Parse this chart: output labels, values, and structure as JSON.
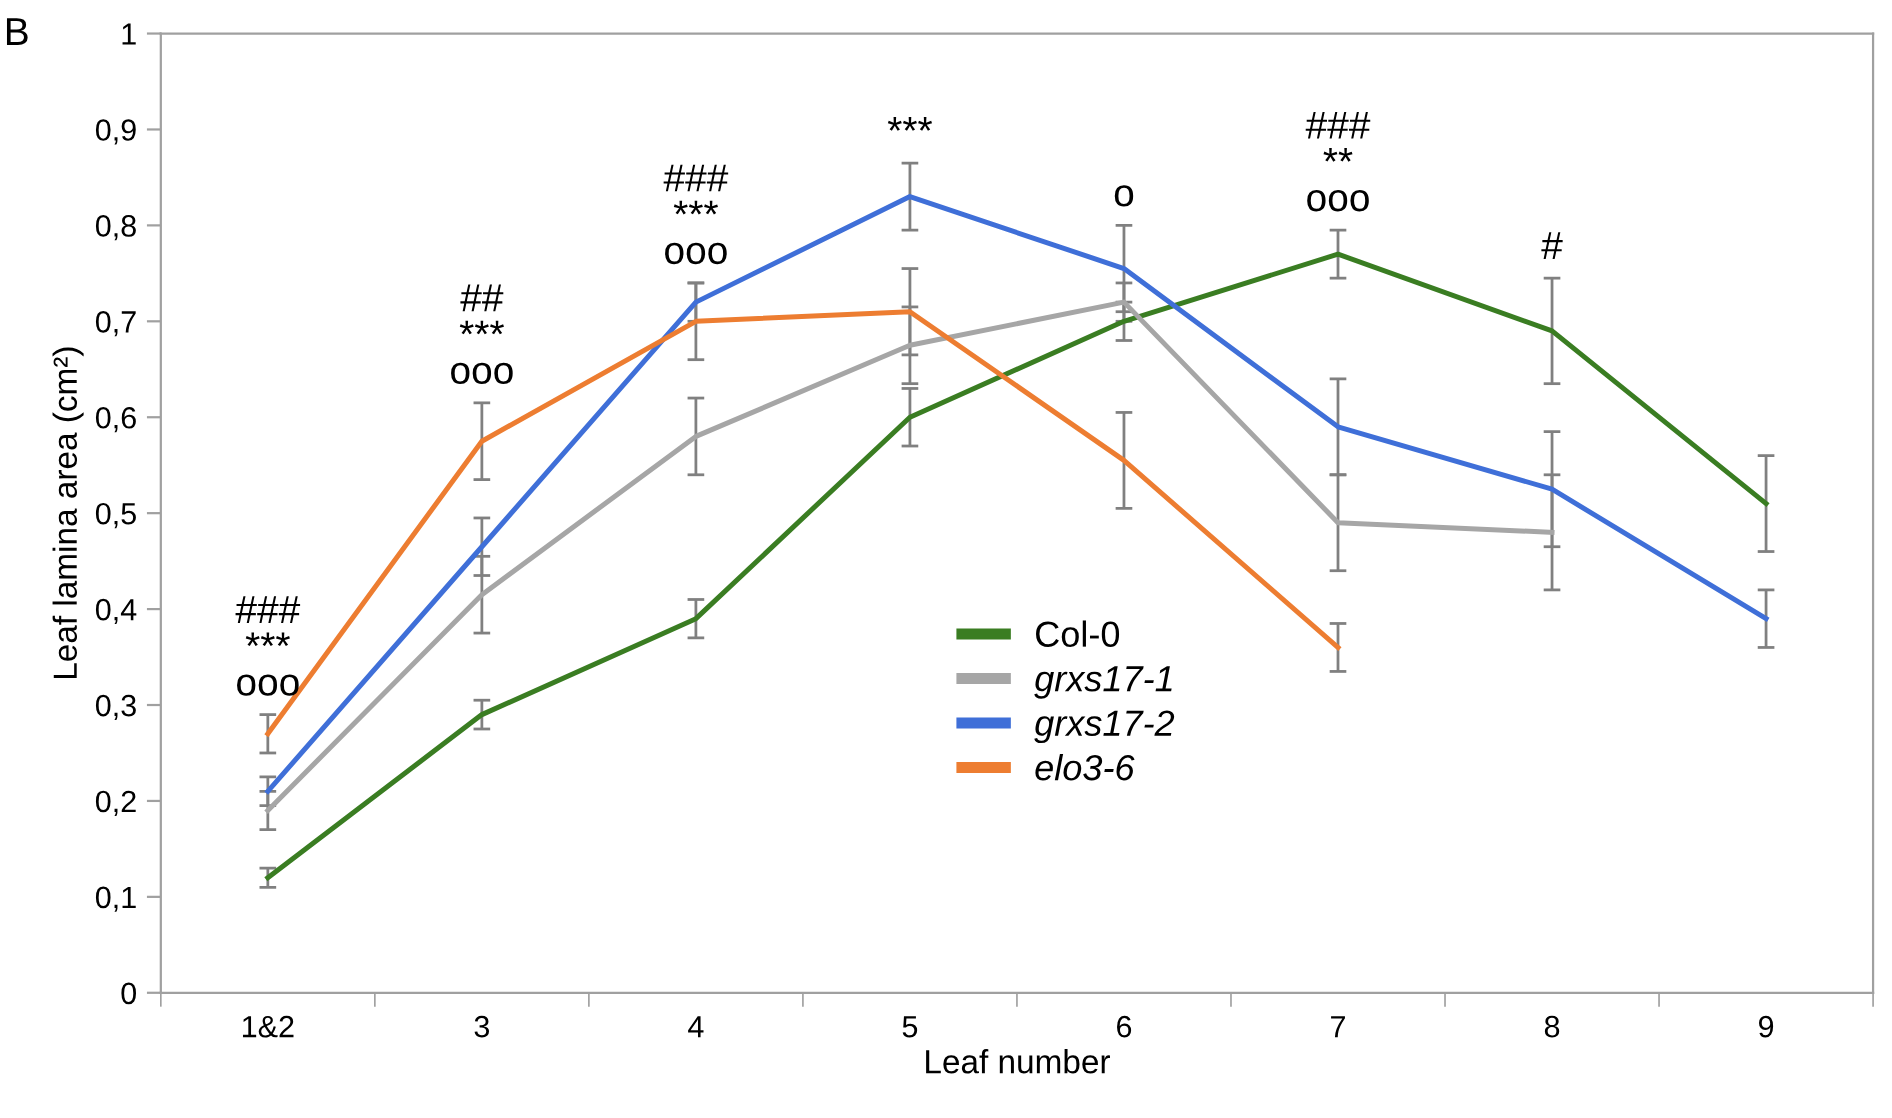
{
  "chart_data": {
    "type": "line",
    "xlabel": "Leaf number",
    "ylabel": "Leaf lamina area (cm²)",
    "categories": [
      "1&2",
      "3",
      "4",
      "5",
      "6",
      "7",
      "8",
      "9"
    ],
    "series": [
      {
        "name": "Col-0",
        "color": "#3a7d22",
        "values": [
          0.12,
          0.29,
          0.39,
          0.6,
          0.7,
          0.77,
          0.69,
          0.51
        ],
        "errors": [
          0.01,
          0.015,
          0.02,
          0.03,
          0.02,
          0.025,
          0.055,
          0.05
        ]
      },
      {
        "name": "grxs17-1",
        "color": "#a6a6a6",
        "values": [
          0.19,
          0.415,
          0.58,
          0.675,
          0.72,
          0.49,
          0.48,
          null
        ],
        "errors": [
          0.02,
          0.04,
          0.04,
          0.04,
          0.02,
          0.05,
          0.06,
          null
        ]
      },
      {
        "name": "grxs17-2",
        "color": "#3f6fd8",
        "values": [
          0.21,
          0.465,
          0.72,
          0.83,
          0.755,
          0.59,
          0.525,
          0.39
        ],
        "errors": [
          0.015,
          0.03,
          0.02,
          0.035,
          0.045,
          0.05,
          0.06,
          0.03
        ]
      },
      {
        "name": "elo3-6",
        "color": "#ed7d31",
        "values": [
          0.27,
          0.575,
          0.7,
          0.71,
          0.555,
          0.36,
          null,
          null
        ],
        "errors": [
          0.02,
          0.04,
          0.04,
          0.045,
          0.05,
          0.025,
          null,
          null
        ]
      }
    ],
    "ylim": [
      0,
      1
    ],
    "yticks": [
      0,
      {
        "value": 0.1,
        "label": "0,1"
      },
      {
        "value": 0.2,
        "label": "0,2"
      },
      {
        "value": 0.3,
        "label": "0,3"
      },
      {
        "value": 0.4,
        "label": "0,4"
      },
      {
        "value": 0.5,
        "label": "0,5"
      },
      {
        "value": 0.6,
        "label": "0,6"
      },
      {
        "value": 0.7,
        "label": "0,7"
      },
      {
        "value": 0.8,
        "label": "0,8"
      },
      {
        "value": 0.9,
        "label": "0,9"
      },
      1
    ],
    "grid": false,
    "legend": "bottom",
    "marker": "none",
    "line_style": "solid",
    "annotations": [
      "B",
      "###\n***\nooo",
      "##\n***\nooo",
      "###\n***\nooo",
      "***",
      "o",
      "###\n**\nooo",
      "#"
    ]
  }
}
